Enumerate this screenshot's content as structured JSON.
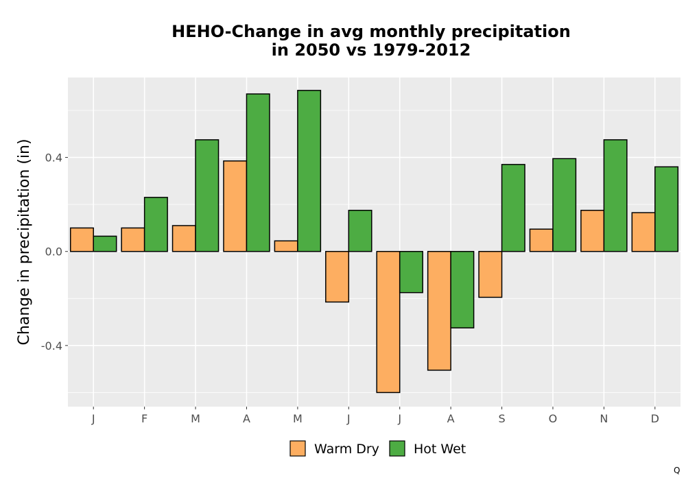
{
  "chart_data": {
    "type": "bar",
    "title_line1": "HEHO-Change in avg monthly precipitation",
    "title_line2": "in 2050 vs 1979-2012",
    "xlabel": "",
    "ylabel": "Change in precipitation (in)",
    "categories": [
      "J",
      "F",
      "M",
      "A",
      "M",
      "J",
      "J",
      "A",
      "S",
      "O",
      "N",
      "D"
    ],
    "series": [
      {
        "name": "Warm Dry",
        "color": "#fdae61",
        "values": [
          0.1,
          0.1,
          0.11,
          0.385,
          0.045,
          -0.215,
          -0.6,
          -0.505,
          -0.195,
          0.095,
          0.175,
          0.165
        ]
      },
      {
        "name": "Hot Wet",
        "color": "#4dac43",
        "values": [
          0.065,
          0.23,
          0.475,
          0.67,
          0.685,
          0.175,
          -0.175,
          -0.325,
          0.37,
          0.395,
          0.475,
          0.36
        ]
      }
    ],
    "yticks": [
      -0.4,
      0.0,
      0.4
    ],
    "ytick_labels": [
      "-0.4",
      "0.0",
      "0.4"
    ],
    "ylim": [
      -0.66,
      0.74
    ],
    "grid": true,
    "legend_position": "bottom",
    "panel_background": "#ebebeb",
    "corner_mark": "Q"
  }
}
